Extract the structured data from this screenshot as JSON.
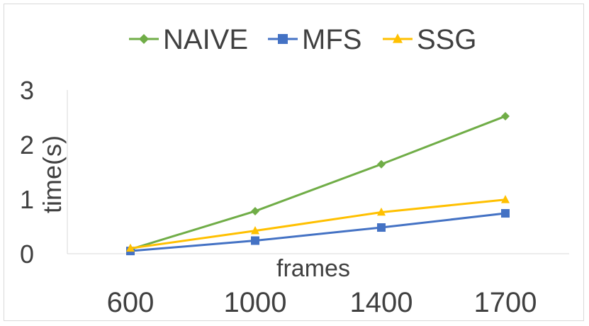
{
  "chart_data": {
    "type": "line",
    "title": "",
    "xlabel": "frames",
    "ylabel": "time(s)",
    "categories": [
      "600",
      "1000",
      "1400",
      "1700"
    ],
    "yticks": [
      "0",
      "1",
      "2",
      "3"
    ],
    "ylim": [
      0,
      3
    ],
    "grid": false,
    "legend_position": "top",
    "series": [
      {
        "name": "NAIVE",
        "color": "#70ad47",
        "marker": "diamond",
        "values": [
          0.08,
          0.78,
          1.64,
          2.52
        ]
      },
      {
        "name": "MFS",
        "color": "#4472c4",
        "marker": "square",
        "values": [
          0.05,
          0.24,
          0.48,
          0.74
        ]
      },
      {
        "name": "SSG",
        "color": "#ffc000",
        "marker": "triangle",
        "values": [
          0.1,
          0.42,
          0.76,
          0.99
        ]
      }
    ]
  }
}
